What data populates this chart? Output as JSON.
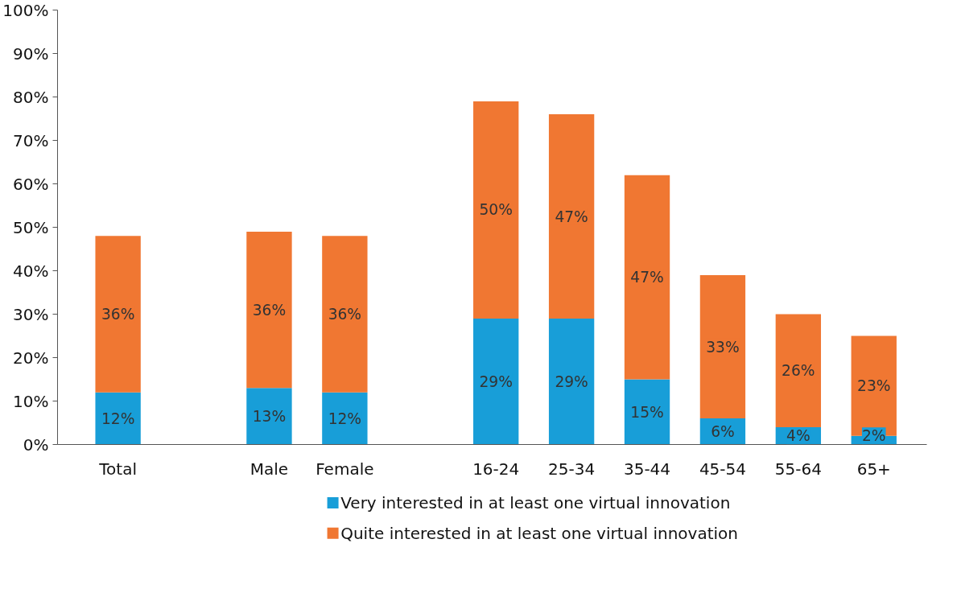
{
  "chart_data": {
    "type": "bar",
    "stacked": true,
    "data_labels": true,
    "legend": "bottom",
    "grid": false,
    "categories": [
      "Total",
      null,
      "Male",
      "Female",
      null,
      "16-24",
      "25-34",
      "35-44",
      "45-54",
      "55-64",
      "65+"
    ],
    "series": [
      {
        "name": "Very interested in at least one virtual innovation",
        "color": "#189ed8",
        "values": [
          12,
          null,
          13,
          12,
          null,
          29,
          29,
          15,
          6,
          4,
          2
        ],
        "value_labels": [
          "12%",
          null,
          "13%",
          "12%",
          null,
          "29%",
          "29%",
          "15%",
          "6%",
          "4%",
          "2%"
        ]
      },
      {
        "name": "Quite interested in at least one virtual innovation",
        "color": "#f07732",
        "values": [
          36,
          null,
          36,
          36,
          null,
          50,
          47,
          47,
          33,
          26,
          23
        ],
        "value_labels": [
          "36%",
          null,
          "36%",
          "36%",
          null,
          "50%",
          "47%",
          "47%",
          "33%",
          "26%",
          "23%"
        ]
      }
    ],
    "ylim": [
      0,
      100
    ],
    "yticks": [
      {
        "value": 0,
        "label": "0%"
      },
      {
        "value": 10,
        "label": "10%"
      },
      {
        "value": 20,
        "label": "20%"
      },
      {
        "value": 30,
        "label": "30%"
      },
      {
        "value": 40,
        "label": "40%"
      },
      {
        "value": 50,
        "label": "50%"
      },
      {
        "value": 60,
        "label": "60%"
      },
      {
        "value": 70,
        "label": "70%"
      },
      {
        "value": 80,
        "label": "80%"
      },
      {
        "value": 90,
        "label": "90%"
      },
      {
        "value": 100,
        "label": "100%"
      }
    ]
  }
}
